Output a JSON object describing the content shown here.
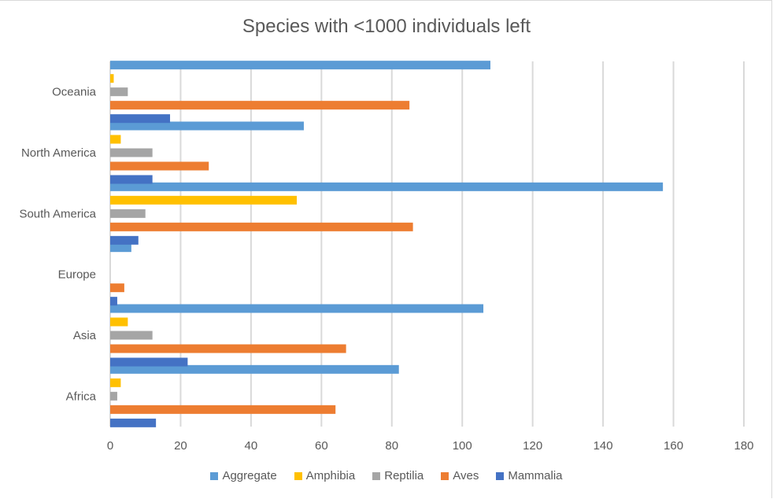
{
  "chart_data": {
    "type": "bar",
    "orientation": "horizontal",
    "title": "Species with <1000 individuals left",
    "xlabel": "",
    "ylabel": "",
    "xlim": [
      0,
      180
    ],
    "xticks": [
      0,
      20,
      40,
      60,
      80,
      100,
      120,
      140,
      160,
      180
    ],
    "xtick_labels": [
      "0",
      "20",
      "40",
      "60",
      "80",
      "100",
      "120",
      "140",
      "160",
      "180"
    ],
    "grid": true,
    "legend_position": "bottom",
    "categories": [
      "Africa",
      "Asia",
      "Europe",
      "South America",
      "North America",
      "Oceania"
    ],
    "series": [
      {
        "name": "Aggregate",
        "color": "#5b9bd5",
        "values": [
          82,
          106,
          6,
          157,
          55,
          108
        ]
      },
      {
        "name": "Amphibia",
        "color": "#ffc000",
        "values": [
          3,
          5,
          0,
          53,
          3,
          1
        ]
      },
      {
        "name": "Reptilia",
        "color": "#a5a5a5",
        "values": [
          2,
          12,
          0,
          10,
          12,
          5
        ]
      },
      {
        "name": "Aves",
        "color": "#ed7d31",
        "values": [
          64,
          67,
          4,
          86,
          28,
          85
        ]
      },
      {
        "name": "Mammalia",
        "color": "#4472c4",
        "values": [
          13,
          22,
          2,
          8,
          12,
          17
        ]
      }
    ]
  }
}
